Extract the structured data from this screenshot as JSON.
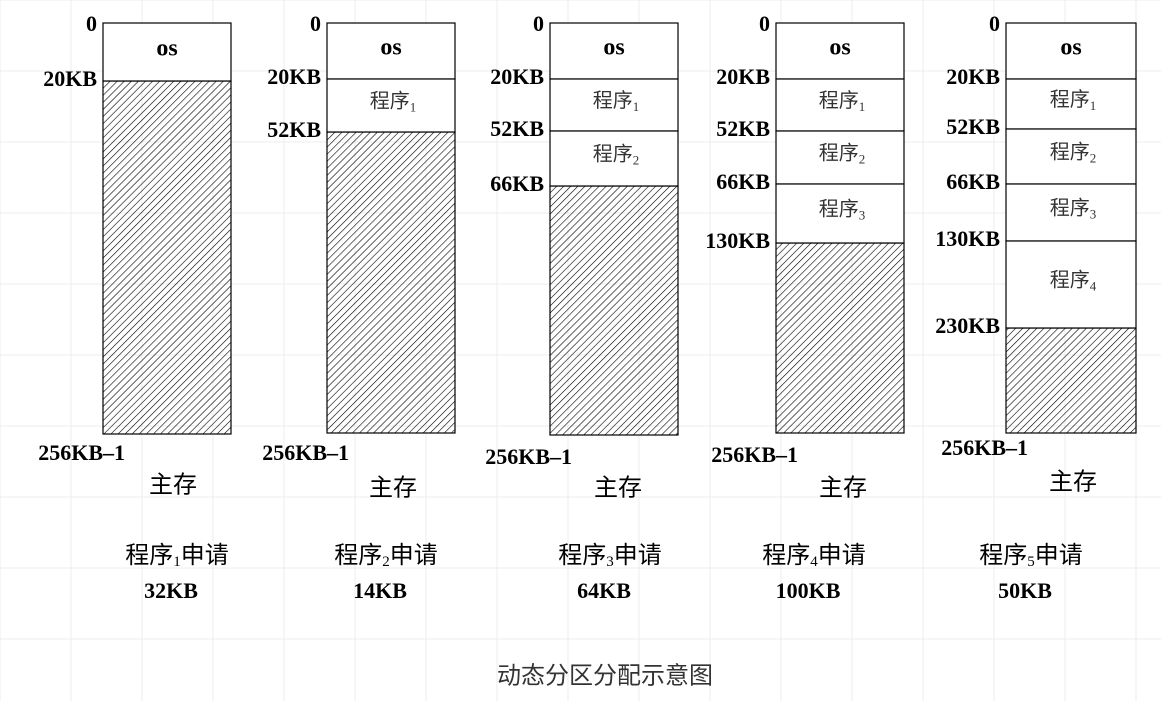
{
  "columns": [
    {
      "addresses": [
        "0",
        "20KB",
        "256KB–1"
      ],
      "blocks": [
        {
          "text": "os"
        }
      ],
      "memory": "主存",
      "request": {
        "text": "程序",
        "sub": "1",
        "suffix": "申请"
      },
      "size": "32KB"
    },
    {
      "addresses": [
        "0",
        "20KB",
        "52KB",
        "256KB–1"
      ],
      "blocks": [
        {
          "text": "os"
        },
        {
          "text": "程序",
          "sub": "1"
        }
      ],
      "memory": "主存",
      "request": {
        "text": "程序",
        "sub": "2",
        "suffix": "申请"
      },
      "size": "14KB"
    },
    {
      "addresses": [
        "0",
        "20KB",
        "52KB",
        "66KB",
        "256KB–1"
      ],
      "blocks": [
        {
          "text": "os"
        },
        {
          "text": "程序",
          "sub": "1"
        },
        {
          "text": "程序",
          "sub": "2"
        }
      ],
      "memory": "主存",
      "request": {
        "text": "程序",
        "sub": "3",
        "suffix": "申请"
      },
      "size": "64KB"
    },
    {
      "addresses": [
        "0",
        "20KB",
        "52KB",
        "66KB",
        "130KB",
        "256KB–1"
      ],
      "blocks": [
        {
          "text": "os"
        },
        {
          "text": "程序",
          "sub": "1"
        },
        {
          "text": "程序",
          "sub": "2"
        },
        {
          "text": "程序",
          "sub": "3"
        }
      ],
      "memory": "主存",
      "request": {
        "text": "程序",
        "sub": "4",
        "suffix": "申请"
      },
      "size": "100KB"
    },
    {
      "addresses": [
        "0",
        "20KB",
        "52KB",
        "66KB",
        "130KB",
        "230KB",
        "256KB–1"
      ],
      "blocks": [
        {
          "text": "os"
        },
        {
          "text": "程序",
          "sub": "1"
        },
        {
          "text": "程序",
          "sub": "2"
        },
        {
          "text": "程序",
          "sub": "3"
        },
        {
          "text": "程序",
          "sub": "4"
        }
      ],
      "memory": "主存",
      "request": {
        "text": "程序",
        "sub": "5",
        "suffix": "申请"
      },
      "size": "50KB"
    }
  ],
  "caption": "动态分区分配示意图"
}
